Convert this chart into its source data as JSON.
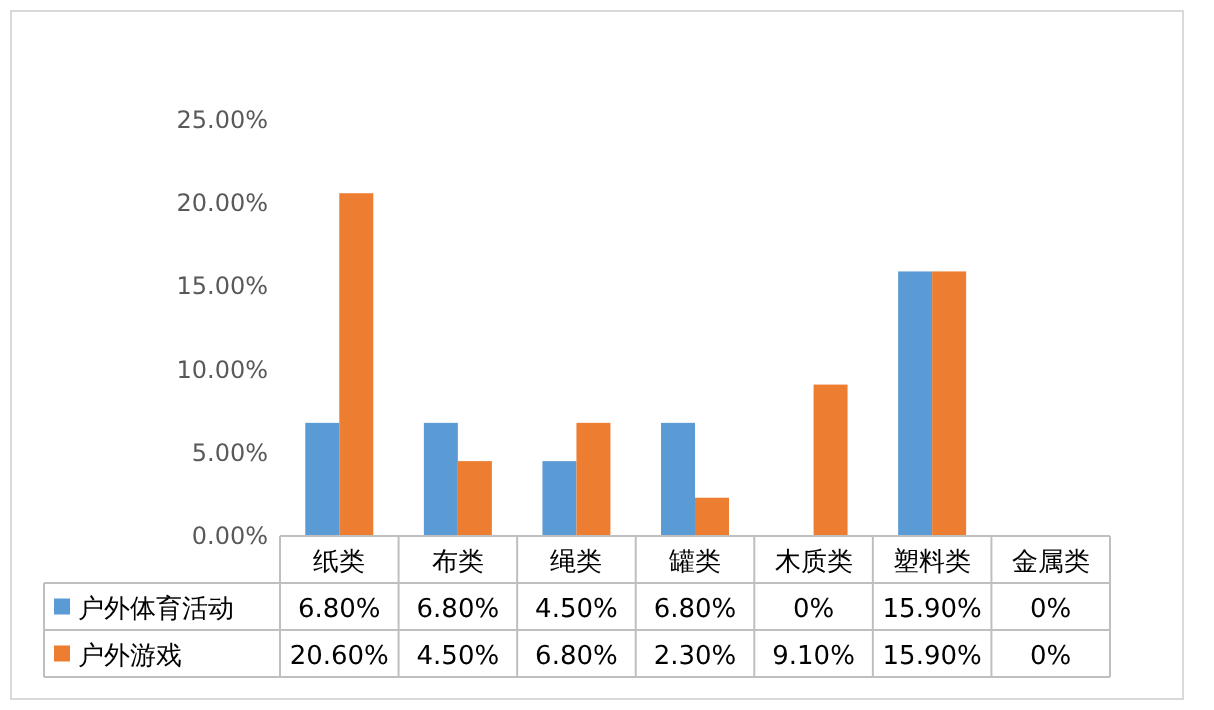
{
  "chart_data": {
    "type": "bar",
    "categories": [
      "纸类",
      "布类",
      "绳类",
      "罐类",
      "木质类",
      "塑料类",
      "金属类"
    ],
    "series": [
      {
        "name": "户外体育活动",
        "color": "#5b9bd5",
        "values": [
          6.8,
          6.8,
          4.5,
          6.8,
          0,
          15.9,
          0
        ],
        "value_labels": [
          "6.80%",
          "6.80%",
          "4.50%",
          "6.80%",
          "0%",
          "15.90%",
          "0%"
        ]
      },
      {
        "name": "户外游戏",
        "color": "#ed7d31",
        "values": [
          20.6,
          4.5,
          6.8,
          2.3,
          9.1,
          15.9,
          0
        ],
        "value_labels": [
          "20.60%",
          "4.50%",
          "6.80%",
          "2.30%",
          "9.10%",
          "15.90%",
          "0%"
        ]
      }
    ],
    "ylim": [
      0,
      25
    ],
    "yticks": [
      {
        "value": 0,
        "label": "0.00%"
      },
      {
        "value": 5,
        "label": "5.00%"
      },
      {
        "value": 10,
        "label": "10.00%"
      },
      {
        "value": 15,
        "label": "15.00%"
      },
      {
        "value": 20,
        "label": "20.00%"
      },
      {
        "value": 25,
        "label": "25.00%"
      }
    ],
    "grid": false,
    "legend": "bottom"
  }
}
